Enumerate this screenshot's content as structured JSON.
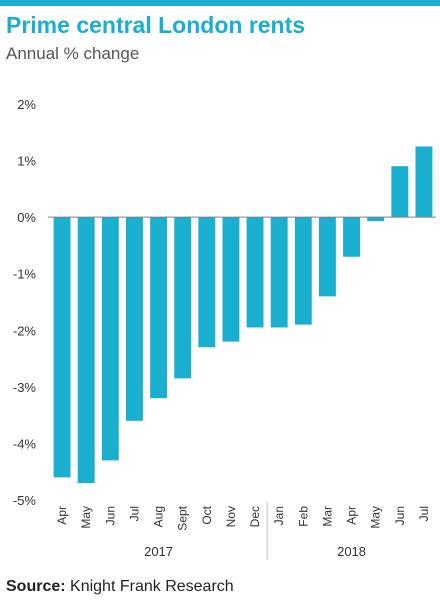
{
  "colors": {
    "accent": "#1aaecf",
    "bar": "#1aaecf",
    "axis": "#7f7f7f",
    "divider": "#bfbfbf"
  },
  "header": {
    "title": "Prime central London rents",
    "subtitle": "Annual % change"
  },
  "footer": {
    "source_label": "Source:",
    "source_text": "Knight Frank Research"
  },
  "chart_data": {
    "type": "bar",
    "title": "Prime central London rents",
    "subtitle": "Annual % change",
    "xlabel": "",
    "ylabel": "",
    "ylim": [
      -5,
      2
    ],
    "yticks": [
      2,
      1,
      0,
      -1,
      -2,
      -3,
      -4,
      -5
    ],
    "ytick_labels": [
      "2%",
      "1%",
      "0%",
      "-1%",
      "-2%",
      "-3%",
      "-4%",
      "-5%"
    ],
    "grid": false,
    "categories": [
      "Apr",
      "May",
      "Jun",
      "Jul",
      "Aug",
      "Sept",
      "Oct",
      "Nov",
      "Dec",
      "Jan",
      "Feb",
      "Mar",
      "Apr",
      "May",
      "Jun",
      "Jul"
    ],
    "values": [
      -4.6,
      -4.7,
      -4.3,
      -3.6,
      -3.2,
      -2.85,
      -2.3,
      -2.2,
      -1.95,
      -1.95,
      -1.9,
      -1.4,
      -0.7,
      -0.07,
      0.9,
      1.25
    ],
    "year_groups": [
      {
        "label": "2017",
        "start": 0,
        "end": 8
      },
      {
        "label": "2018",
        "start": 9,
        "end": 15
      }
    ]
  }
}
